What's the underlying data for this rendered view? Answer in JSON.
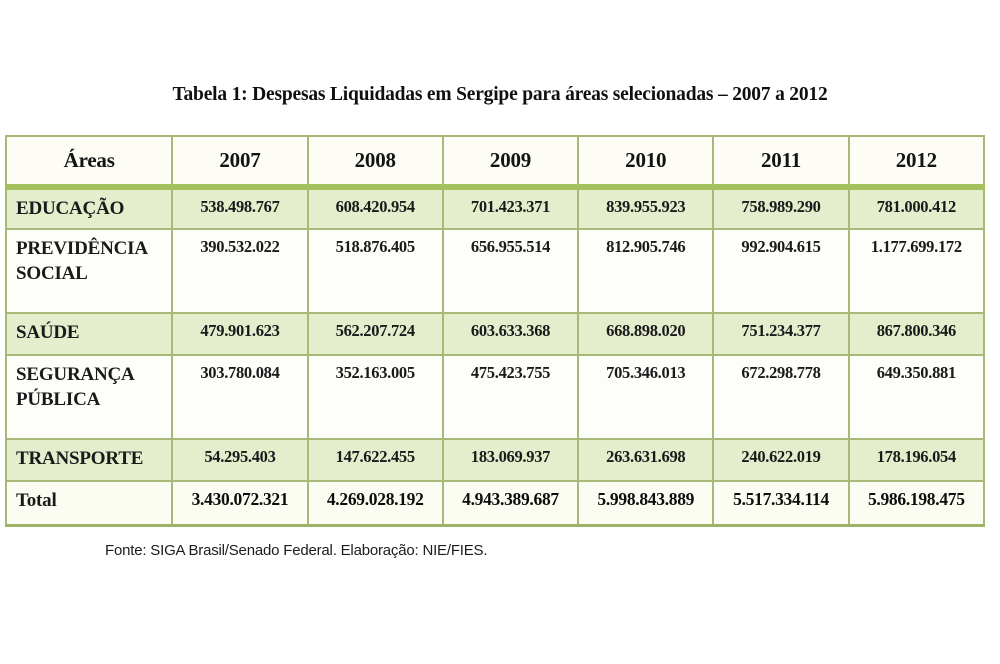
{
  "title": "Tabela 1: Despesas Liquidadas em Sergipe para áreas selecionadas – 2007 a 2012",
  "footer": "Fonte: SIGA Brasil/Senado Federal. Elaboração: NIE/FIES.",
  "colors": {
    "table_border": "#a8b876",
    "header_band": "#a4c05e",
    "shaded_row": "#e4edcc",
    "background": "#ffffff"
  },
  "chart_data": {
    "type": "table",
    "title": "Tabela 1: Despesas Liquidadas em Sergipe para áreas selecionadas – 2007 a 2012",
    "source": "Fonte: SIGA Brasil/Senado Federal. Elaboração: NIE/FIES."
  },
  "table": {
    "columns": [
      "Áreas",
      "2007",
      "2008",
      "2009",
      "2010",
      "2011",
      "2012"
    ],
    "rows": [
      {
        "label": "EDUCAÇÃO",
        "v": [
          "538.498.767",
          "608.420.954",
          "701.423.371",
          "839.955.923",
          "758.989.290",
          "781.000.412"
        ]
      },
      {
        "label": "PREVIDÊNCIA SOCIAL",
        "v": [
          "390.532.022",
          "518.876.405",
          "656.955.514",
          "812.905.746",
          "992.904.615",
          "1.177.699.172"
        ]
      },
      {
        "label": "SAÚDE",
        "v": [
          "479.901.623",
          "562.207.724",
          "603.633.368",
          "668.898.020",
          "751.234.377",
          "867.800.346"
        ]
      },
      {
        "label": "SEGURANÇA PÚBLICA",
        "v": [
          "303.780.084",
          "352.163.005",
          "475.423.755",
          "705.346.013",
          "672.298.778",
          "649.350.881"
        ]
      },
      {
        "label": "TRANSPORTE",
        "v": [
          "54.295.403",
          "147.622.455",
          "183.069.937",
          "263.631.698",
          "240.622.019",
          "178.196.054"
        ]
      },
      {
        "label": "Total",
        "v": [
          "3.430.072.321",
          "4.269.028.192",
          "4.943.389.687",
          "5.998.843.889",
          "5.517.334.114",
          "5.986.198.475"
        ]
      }
    ]
  }
}
